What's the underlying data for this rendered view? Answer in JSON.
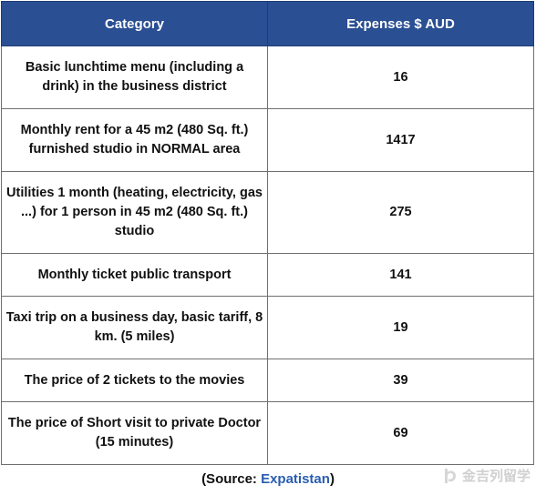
{
  "table": {
    "headers": [
      "Category",
      "Expenses $ AUD"
    ],
    "rows": [
      {
        "category": "Basic lunchtime menu (including a drink) in the business district",
        "value": "16"
      },
      {
        "category": "Monthly rent for a 45 m2 (480 Sq. ft.) furnished studio in NORMAL area",
        "value": "1417"
      },
      {
        "category": "Utilities 1 month (heating, electricity, gas ...) for 1 person in 45 m2 (480 Sq. ft.) studio",
        "value": "275"
      },
      {
        "category": "Monthly ticket public transport",
        "value": "141"
      },
      {
        "category": "Taxi trip on a business day, basic tariff, 8 km. (5 miles)",
        "value": "19"
      },
      {
        "category": "The price of 2 tickets to the movies",
        "value": "39"
      },
      {
        "category": "The price of Short visit to private Doctor (15 minutes)",
        "value": "69"
      }
    ],
    "header_bg": "#2a4f93"
  },
  "source": {
    "prefix": "(Source: ",
    "link": "Expatistan",
    "suffix": ")"
  },
  "watermark": {
    "icon": "logo-icon",
    "text": "金吉列留学"
  }
}
